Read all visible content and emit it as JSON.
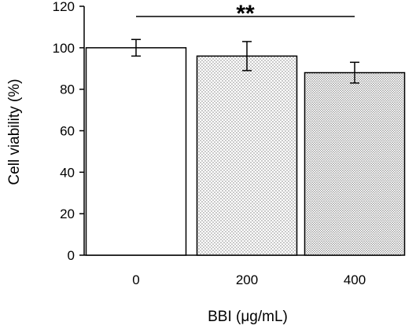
{
  "chart_data": {
    "type": "bar",
    "xlabel": "BBI (μg/mL)",
    "ylabel": "Cell viability (%)",
    "categories": [
      "0",
      "200",
      "400"
    ],
    "values": [
      100,
      96,
      88
    ],
    "errors": [
      4,
      7,
      5
    ],
    "ylim": [
      0,
      120
    ],
    "yticks": [
      0,
      20,
      40,
      60,
      80,
      100,
      120
    ],
    "fills": [
      "plain",
      "dotted",
      "dotted-dense"
    ],
    "significance": {
      "label": "**",
      "from": "0",
      "to": "400"
    },
    "grid": false,
    "legend": "none"
  }
}
